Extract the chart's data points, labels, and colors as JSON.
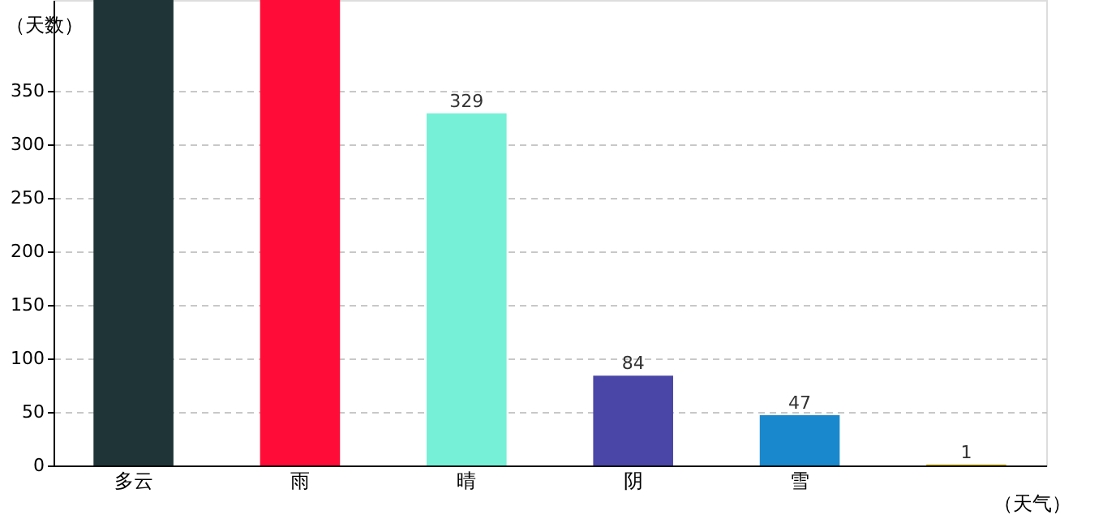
{
  "chart_data": {
    "type": "bar",
    "xlabel": "（天气）",
    "ylabel": "（天数）",
    "categories": [
      "多云",
      "雨",
      "晴",
      "阴",
      "雪",
      null
    ],
    "values": [
      435,
      435,
      329,
      84,
      47,
      1
    ],
    "colors": [
      "#1f3436",
      "#ff0d38",
      "#76f0d6",
      "#4a46a8",
      "#1a88cc",
      "#c8a800"
    ],
    "value_labels": [
      null,
      null,
      "329",
      "84",
      "47",
      "1"
    ],
    "ylim": [
      0,
      435
    ],
    "yticks": [
      0,
      50,
      100,
      150,
      200,
      250,
      300,
      350
    ],
    "grid": "y"
  }
}
